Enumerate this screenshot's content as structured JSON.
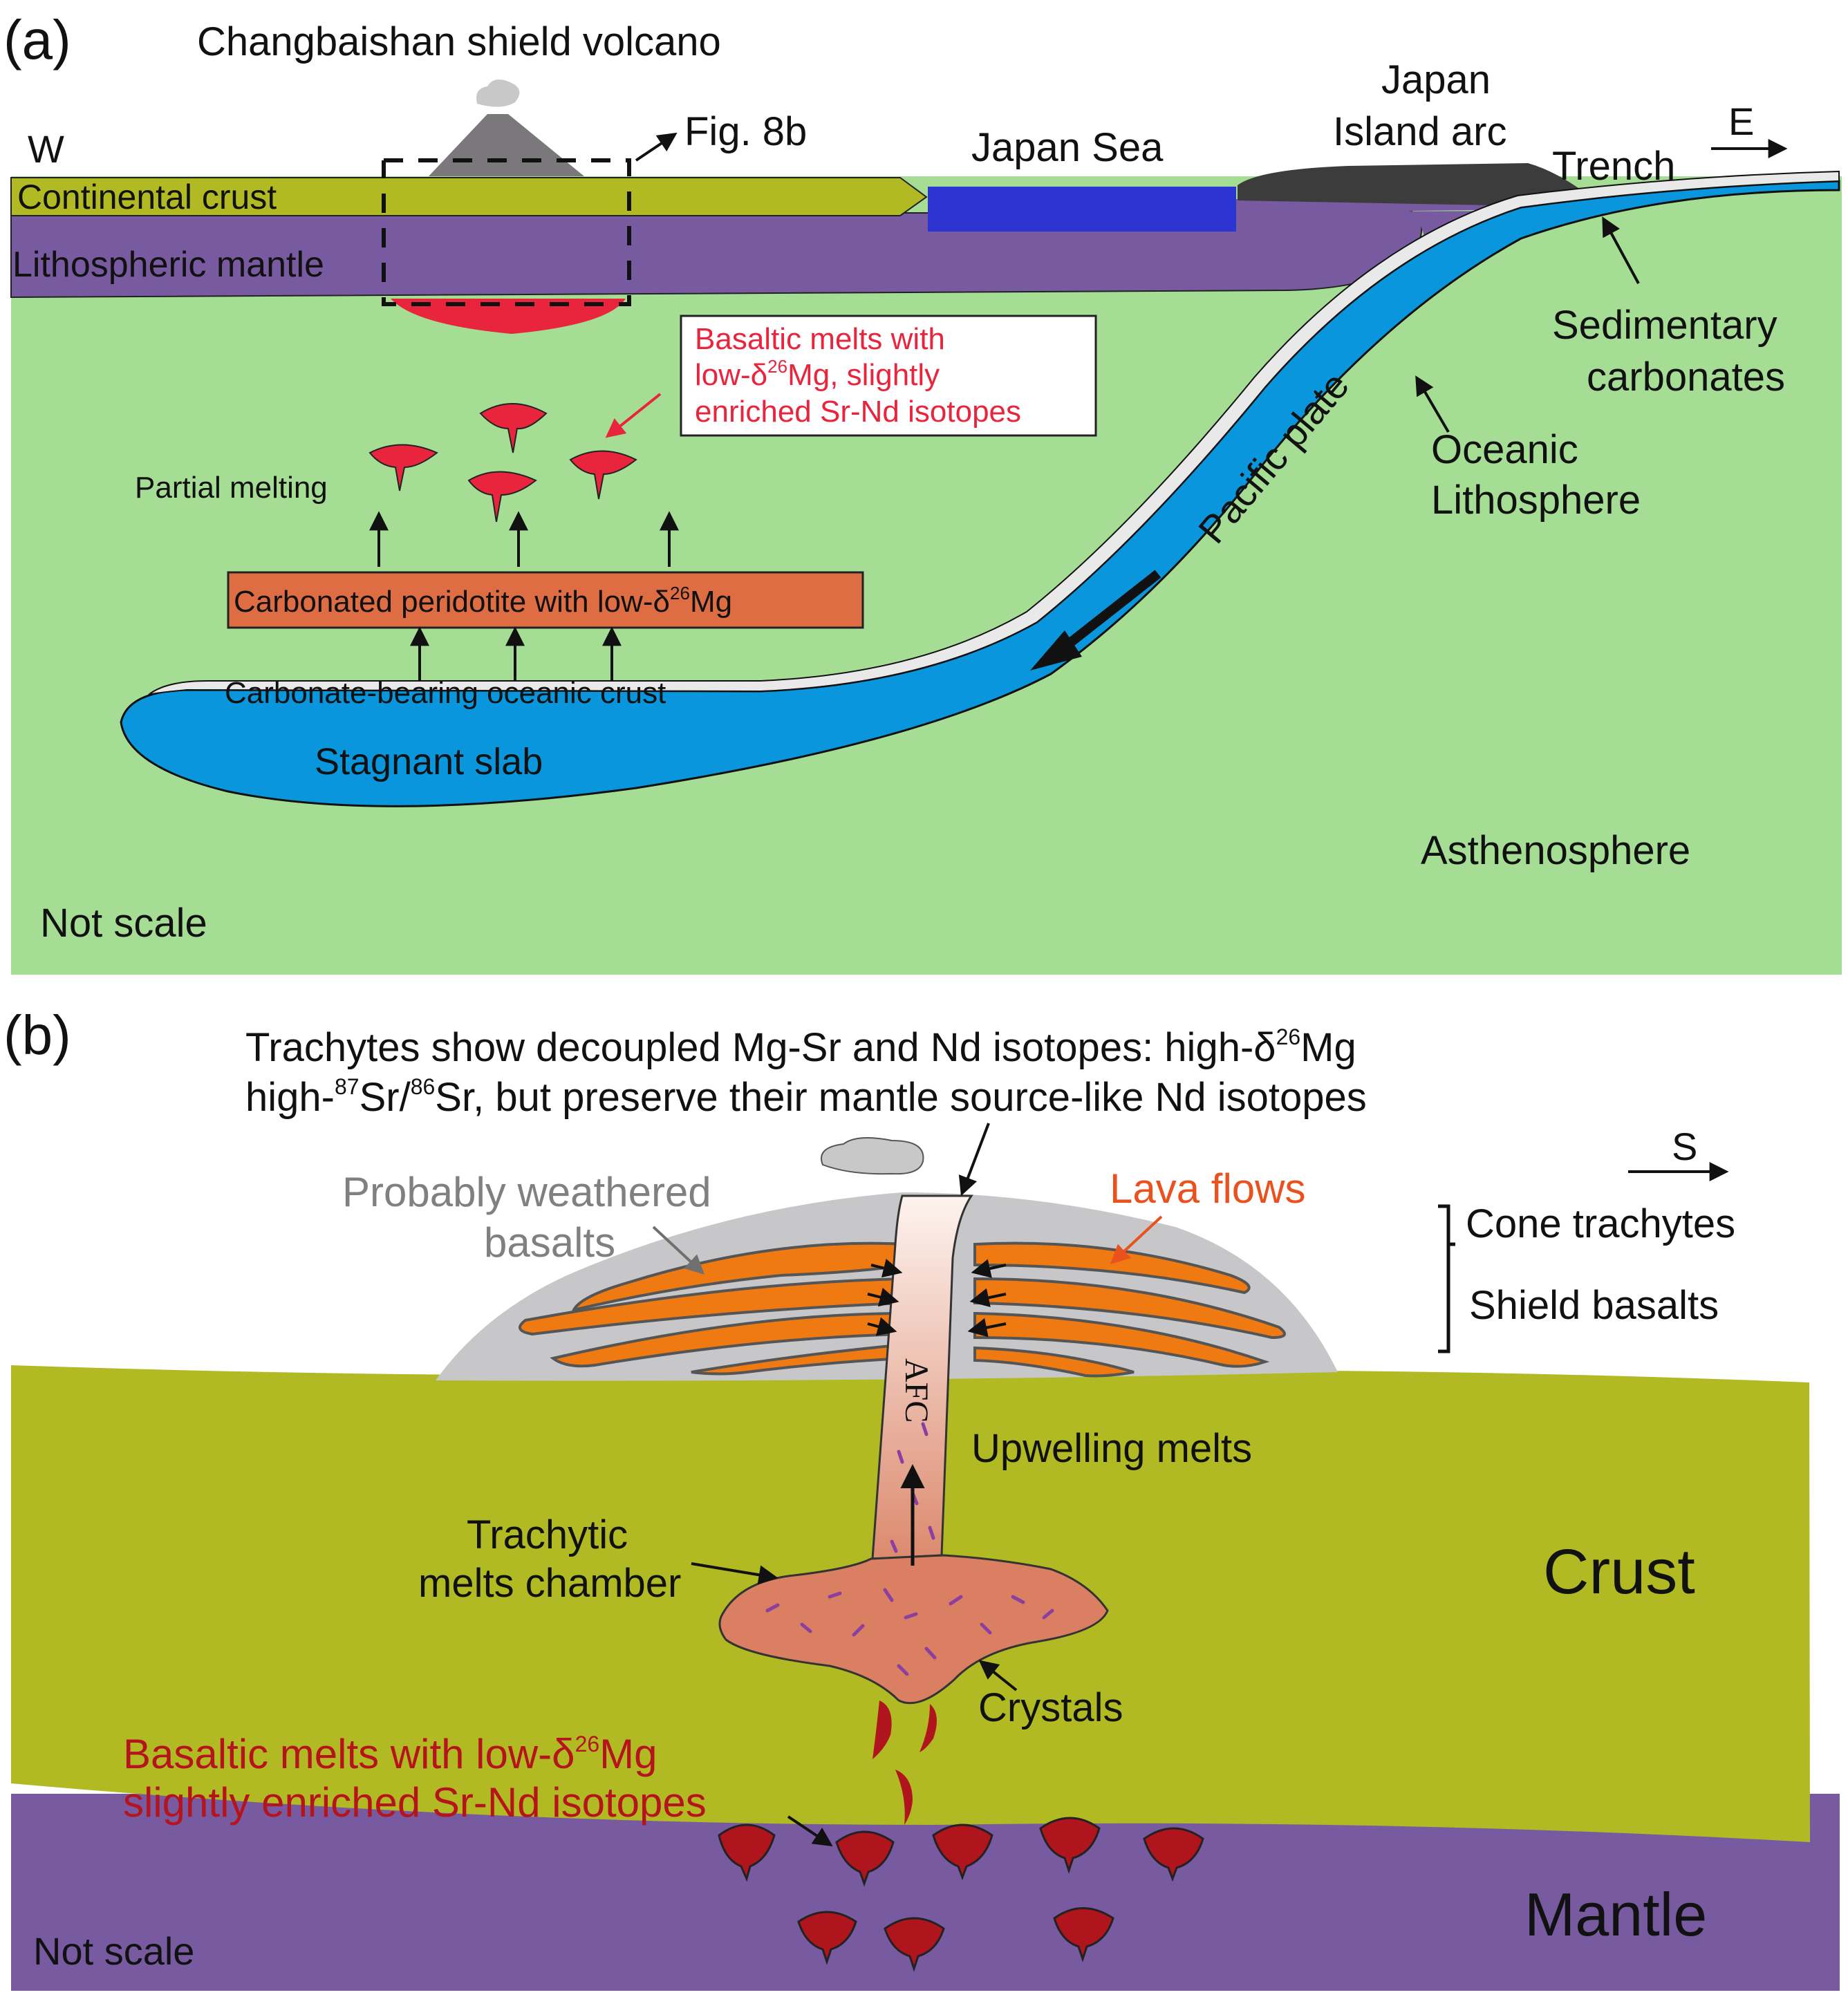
{
  "panel_a": {
    "label": "(a)",
    "title": "Changbaishan shield volcano",
    "west": "W",
    "east": "E",
    "fig_ref": "Fig. 8b",
    "japan_sea": "Japan Sea",
    "japan_arc_1": "Japan",
    "japan_arc_2": "Island arc",
    "trench": "Trench",
    "continental_crust": "Continental crust",
    "lithospheric_mantle": "Lithospheric mantle",
    "melts_box_1_pre": "Basaltic melts with",
    "melts_box_2_pre": "low-δ",
    "melts_box_2_sup": "26",
    "melts_box_2_post": "Mg, slightly",
    "melts_box_3": "enriched Sr-Nd isotopes",
    "partial_melting": "Partial melting",
    "peridotite_pre": "Carbonated peridotite with low-δ",
    "peridotite_sup": "26",
    "peridotite_post": "Mg",
    "carbonate_crust": "Carbonate-bearing oceanic crust",
    "stagnant_slab": "Stagnant slab",
    "pacific_plate": "Pacific plate",
    "sedimentary_1": "Sedimentary",
    "sedimentary_2": "carbonates",
    "oceanic_1": "Oceanic",
    "oceanic_2": "Lithosphere",
    "asthenosphere": "Asthenosphere",
    "not_scale": "Not scale"
  },
  "panel_b": {
    "label": "(b)",
    "title1_pre": "Trachytes show decoupled Mg-Sr and Nd isotopes: high-δ",
    "title1_sup": "26",
    "title1_post": "Mg",
    "title2_a": "high-",
    "title2_sup1": "87",
    "title2_b": "Sr/",
    "title2_sup2": "86",
    "title2_c": "Sr, but  preserve their mantle source-like Nd isotopes",
    "south": "S",
    "weathered_1": "Probably weathered",
    "weathered_2": "basalts",
    "lava_flows": "Lava flows",
    "cone_trachytes": "Cone trachytes",
    "shield_basalts": "Shield basalts",
    "afc": "AFC",
    "upwelling": "Upwelling melts",
    "chamber_1": "Trachytic",
    "chamber_2": "melts chamber",
    "crust": "Crust",
    "crystals": "Crystals",
    "melts_1_pre": "Basaltic melts with low-δ",
    "melts_1_sup": "26",
    "melts_1_post": "Mg",
    "melts_2": "slightly enriched Sr-Nd isotopes",
    "mantle": "Mantle",
    "not_scale": "Not scale"
  },
  "colors": {
    "asthenosphere": "#a6dd95",
    "continental_crust": "#b1b923",
    "lithospheric_mantle": "#775aa0",
    "japan_sea": "#2c35d1",
    "arc": "#3c3c3c",
    "slab": "#0996dd",
    "melt": "#e8253c",
    "peridotite": "#df6d43",
    "cone": "#c7c7c9",
    "lava": "#f07a12",
    "dark_melt": "#b0141c",
    "chamber": "#db7f62",
    "red_text": "#b5141c",
    "lava_text": "#e9521e",
    "grey_text": "#808080"
  }
}
